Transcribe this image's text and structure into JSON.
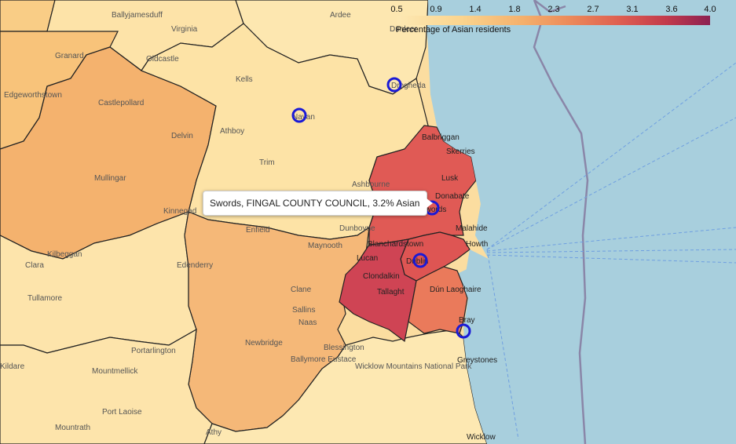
{
  "legend": {
    "title": "Percentage of Asian residents",
    "ticks": [
      "0.5",
      "0.9",
      "1.4",
      "1.8",
      "2.3",
      "2.7",
      "3.1",
      "3.6",
      "4.0"
    ],
    "range": [
      0.5,
      4.0
    ]
  },
  "tooltip": {
    "text": "Swords, FINGAL COUNTY COUNCIL, 3.2% Asian"
  },
  "colors": {
    "sea": "#a8cfdd",
    "low": "#fde8b3",
    "mid": "#f4b06c",
    "high": "#dd5c50",
    "marker": "#1a1ad6"
  },
  "places": [
    "Ballyjamesduff",
    "Virginia",
    "Ardee",
    "Dunleer",
    "Granard",
    "Oldcastle",
    "Kells",
    "Edgeworthstown",
    "Castlepollard",
    "Navan",
    "Drogheda",
    "Delvin",
    "Athboy",
    "Balbriggan",
    "Skerries",
    "Mullingar",
    "Trim",
    "Lusk",
    "Ashbourne",
    "Donabate",
    "Kinnegad",
    "Swords",
    "Kilbeggan",
    "Enfield",
    "Dunboyne",
    "Malahide",
    "Maynooth",
    "Blanchardstown",
    "Howth",
    "Clara",
    "Edenderry",
    "Lucan",
    "Dublin",
    "Clondalkin",
    "Tullamore",
    "Tallaght",
    "Dún Laoghaire",
    "Clane",
    "Sallins",
    "Naas",
    "Bray",
    "Newbridge",
    "Portarlington",
    "Blessington",
    "Greystones",
    "Ballymore Eustace",
    "Mountmellick",
    "Wicklow Mountains National Park",
    "Port Laoise",
    "Mountrath",
    "Athy",
    "Wicklow",
    "Kildare"
  ]
}
